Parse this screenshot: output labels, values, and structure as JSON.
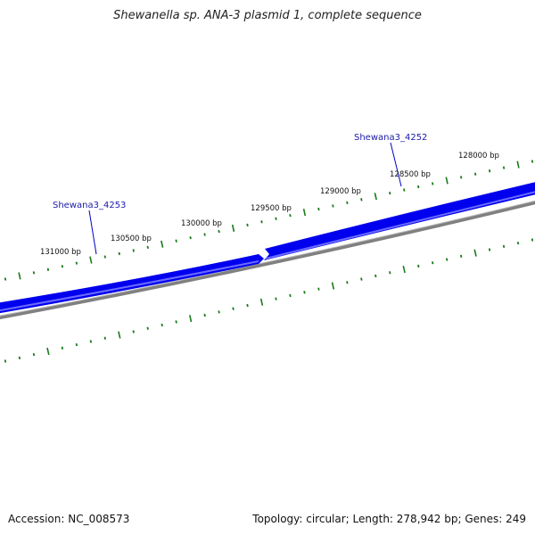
{
  "title": "Shewanella sp. ANA-3 plasmid 1, complete sequence",
  "footer": {
    "accession": "Accession: NC_008573",
    "summary": "Topology: circular; Length: 278,942 bp; Genes: 249"
  },
  "colors": {
    "gene_fill": "#0000ee",
    "gene_highlight": "#3a3aff",
    "backbone": "#808080",
    "tick": "#1a7a1a",
    "label_line": "#0000cc"
  },
  "tick_labels": [
    "128000 bp",
    "128500 bp",
    "129000 bp",
    "129500 bp",
    "130000 bp",
    "130500 bp",
    "131000 bp"
  ],
  "genes": [
    {
      "name": "Shewana3_4252",
      "strand": "+"
    },
    {
      "name": "Shewana3_4253",
      "strand": "+"
    }
  ]
}
